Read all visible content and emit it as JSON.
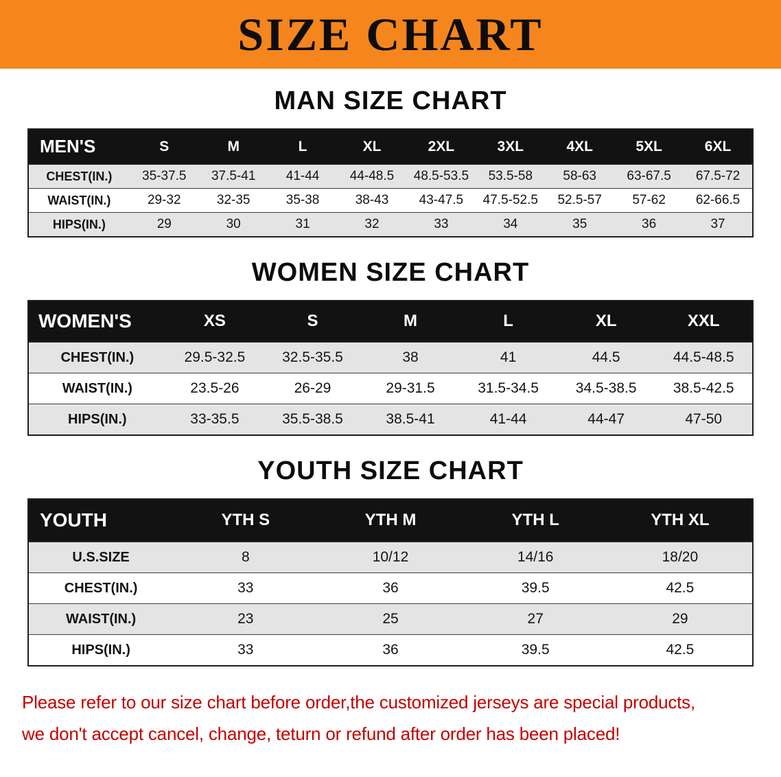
{
  "banner": {
    "title": "SIZE CHART",
    "bg_color": "#f5851d"
  },
  "sections": [
    {
      "id": "mens",
      "heading": "MAN SIZE CHART",
      "table": {
        "header": [
          "MEN'S",
          "S",
          "M",
          "L",
          "XL",
          "2XL",
          "3XL",
          "4XL",
          "5XL",
          "6XL"
        ],
        "rows": [
          {
            "label": "CHEST(IN.)",
            "values": [
              "35-37.5",
              "37.5-41",
              "41-44",
              "44-48.5",
              "48.5-53.5",
              "53.5-58",
              "58-63",
              "63-67.5",
              "67.5-72"
            ]
          },
          {
            "label": "WAIST(IN.)",
            "values": [
              "29-32",
              "32-35",
              "35-38",
              "38-43",
              "43-47.5",
              "47.5-52.5",
              "52.5-57",
              "57-62",
              "62-66.5"
            ]
          },
          {
            "label": "HIPS(IN.)",
            "values": [
              "29",
              "30",
              "31",
              "32",
              "33",
              "34",
              "35",
              "36",
              "37"
            ]
          }
        ]
      }
    },
    {
      "id": "womens",
      "heading": "WOMEN SIZE CHART",
      "table": {
        "header": [
          "WOMEN'S",
          "XS",
          "S",
          "M",
          "L",
          "XL",
          "XXL"
        ],
        "rows": [
          {
            "label": "CHEST(IN.)",
            "values": [
              "29.5-32.5",
              "32.5-35.5",
              "38",
              "41",
              "44.5",
              "44.5-48.5"
            ]
          },
          {
            "label": "WAIST(IN.)",
            "values": [
              "23.5-26",
              "26-29",
              "29-31.5",
              "31.5-34.5",
              "34.5-38.5",
              "38.5-42.5"
            ]
          },
          {
            "label": "HIPS(IN.)",
            "values": [
              "33-35.5",
              "35.5-38.5",
              "38.5-41",
              "41-44",
              "44-47",
              "47-50"
            ]
          }
        ]
      }
    },
    {
      "id": "youth",
      "heading": "YOUTH SIZE CHART",
      "table": {
        "header": [
          "YOUTH",
          "YTH S",
          "YTH M",
          "YTH L",
          "YTH XL"
        ],
        "rows": [
          {
            "label": "U.S.SIZE",
            "values": [
              "8",
              "10/12",
              "14/16",
              "18/20"
            ]
          },
          {
            "label": "CHEST(IN.)",
            "values": [
              "33",
              "36",
              "39.5",
              "42.5"
            ]
          },
          {
            "label": "WAIST(IN.)",
            "values": [
              "23",
              "25",
              "27",
              "29"
            ]
          },
          {
            "label": "HIPS(IN.)",
            "values": [
              "33",
              "36",
              "39.5",
              "42.5"
            ]
          }
        ]
      }
    }
  ],
  "footer": {
    "line1": "Please refer to our size chart before order,the customized jerseys are special products,",
    "line2": "we don't accept cancel, change, teturn or refund after order has been placed!",
    "text_color": "#c40000"
  }
}
